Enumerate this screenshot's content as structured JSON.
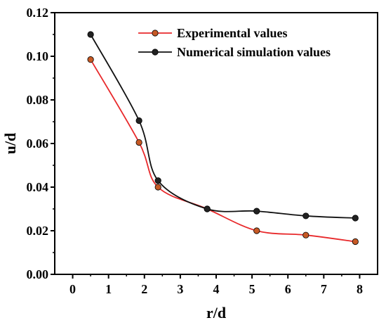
{
  "chart_data": {
    "type": "line",
    "xlabel": "r/d",
    "ylabel": "u/d",
    "xlim": [
      -0.5,
      8.5
    ],
    "ylim": [
      0.0,
      0.12
    ],
    "x_ticks": [
      "0",
      "1",
      "2",
      "3",
      "4",
      "5",
      "6",
      "7",
      "8"
    ],
    "y_ticks": [
      "0.00",
      "0.02",
      "0.04",
      "0.06",
      "0.08",
      "0.10",
      "0.12"
    ],
    "grid": false,
    "legend_position": "top-right",
    "series": [
      {
        "name": "Experimental values",
        "color": "#e8292b",
        "marker_color": "#c75a25",
        "x": [
          0.5,
          1.85,
          2.38,
          3.75,
          5.13,
          6.5,
          7.88
        ],
        "y": [
          0.0985,
          0.0605,
          0.04,
          0.03,
          0.02,
          0.018,
          0.015
        ]
      },
      {
        "name": "Numerical simulation values",
        "color": "#111111",
        "marker_color": "#222222",
        "x": [
          0.5,
          1.85,
          2.38,
          3.75,
          5.13,
          6.5,
          7.88
        ],
        "y": [
          0.11,
          0.0705,
          0.043,
          0.03,
          0.029,
          0.0268,
          0.0258
        ]
      }
    ]
  }
}
